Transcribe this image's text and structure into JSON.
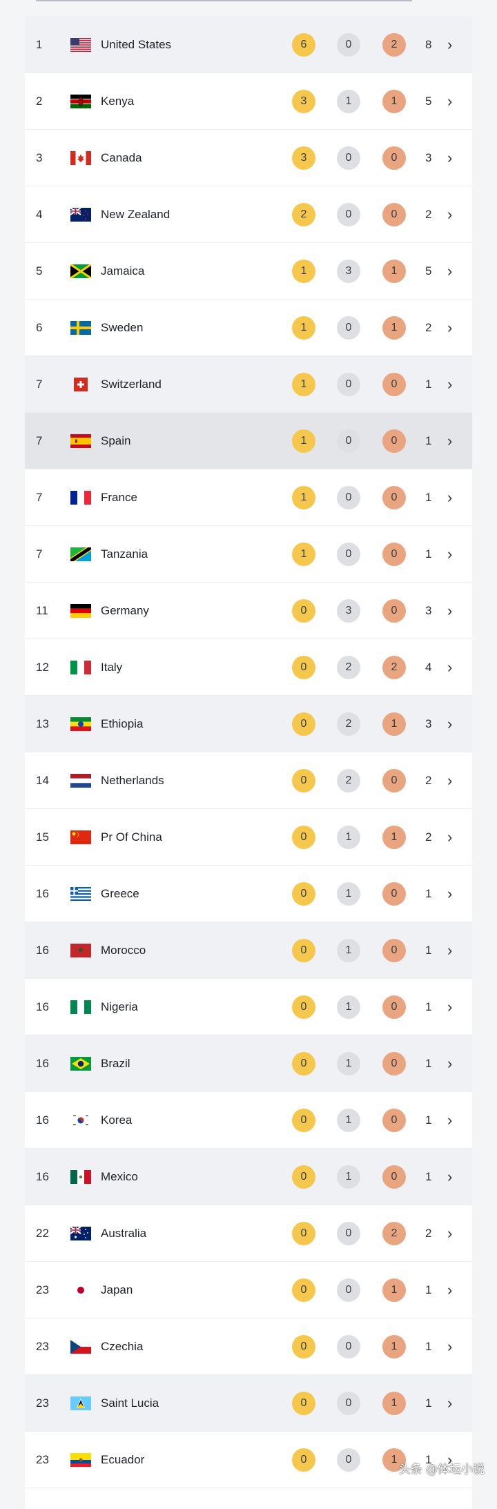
{
  "medal_table": {
    "rows": [
      {
        "rank": "1",
        "country": "United States",
        "gold": "6",
        "silver": "0",
        "bronze": "2",
        "total": "8",
        "flag": "us-flag-icon"
      },
      {
        "rank": "2",
        "country": "Kenya",
        "gold": "3",
        "silver": "1",
        "bronze": "1",
        "total": "5",
        "flag": "kenya-flag-icon"
      },
      {
        "rank": "3",
        "country": "Canada",
        "gold": "3",
        "silver": "0",
        "bronze": "0",
        "total": "3",
        "flag": "canada-flag-icon"
      },
      {
        "rank": "4",
        "country": "New Zealand",
        "gold": "2",
        "silver": "0",
        "bronze": "0",
        "total": "2",
        "flag": "new-zealand-flag-icon"
      },
      {
        "rank": "5",
        "country": "Jamaica",
        "gold": "1",
        "silver": "3",
        "bronze": "1",
        "total": "5",
        "flag": "jamaica-flag-icon"
      },
      {
        "rank": "6",
        "country": "Sweden",
        "gold": "1",
        "silver": "0",
        "bronze": "1",
        "total": "2",
        "flag": "sweden-flag-icon"
      },
      {
        "rank": "7",
        "country": "Switzerland",
        "gold": "1",
        "silver": "0",
        "bronze": "0",
        "total": "1",
        "flag": "switzerland-flag-icon"
      },
      {
        "rank": "7",
        "country": "Spain",
        "gold": "1",
        "silver": "0",
        "bronze": "0",
        "total": "1",
        "flag": "spain-flag-icon"
      },
      {
        "rank": "7",
        "country": "France",
        "gold": "1",
        "silver": "0",
        "bronze": "0",
        "total": "1",
        "flag": "france-flag-icon"
      },
      {
        "rank": "7",
        "country": "Tanzania",
        "gold": "1",
        "silver": "0",
        "bronze": "0",
        "total": "1",
        "flag": "tanzania-flag-icon"
      },
      {
        "rank": "11",
        "country": "Germany",
        "gold": "0",
        "silver": "3",
        "bronze": "0",
        "total": "3",
        "flag": "germany-flag-icon"
      },
      {
        "rank": "12",
        "country": "Italy",
        "gold": "0",
        "silver": "2",
        "bronze": "2",
        "total": "4",
        "flag": "italy-flag-icon"
      },
      {
        "rank": "13",
        "country": "Ethiopia",
        "gold": "0",
        "silver": "2",
        "bronze": "1",
        "total": "3",
        "flag": "ethiopia-flag-icon"
      },
      {
        "rank": "14",
        "country": "Netherlands",
        "gold": "0",
        "silver": "2",
        "bronze": "0",
        "total": "2",
        "flag": "netherlands-flag-icon"
      },
      {
        "rank": "15",
        "country": "Pr Of China",
        "gold": "0",
        "silver": "1",
        "bronze": "1",
        "total": "2",
        "flag": "china-flag-icon"
      },
      {
        "rank": "16",
        "country": "Greece",
        "gold": "0",
        "silver": "1",
        "bronze": "0",
        "total": "1",
        "flag": "greece-flag-icon"
      },
      {
        "rank": "16",
        "country": "Morocco",
        "gold": "0",
        "silver": "1",
        "bronze": "0",
        "total": "1",
        "flag": "morocco-flag-icon"
      },
      {
        "rank": "16",
        "country": "Nigeria",
        "gold": "0",
        "silver": "1",
        "bronze": "0",
        "total": "1",
        "flag": "nigeria-flag-icon"
      },
      {
        "rank": "16",
        "country": "Brazil",
        "gold": "0",
        "silver": "1",
        "bronze": "0",
        "total": "1",
        "flag": "brazil-flag-icon"
      },
      {
        "rank": "16",
        "country": "Korea",
        "gold": "0",
        "silver": "1",
        "bronze": "0",
        "total": "1",
        "flag": "korea-flag-icon"
      },
      {
        "rank": "16",
        "country": "Mexico",
        "gold": "0",
        "silver": "1",
        "bronze": "0",
        "total": "1",
        "flag": "mexico-flag-icon"
      },
      {
        "rank": "22",
        "country": "Australia",
        "gold": "0",
        "silver": "0",
        "bronze": "2",
        "total": "2",
        "flag": "australia-flag-icon"
      },
      {
        "rank": "23",
        "country": "Japan",
        "gold": "0",
        "silver": "0",
        "bronze": "1",
        "total": "1",
        "flag": "japan-flag-icon"
      },
      {
        "rank": "23",
        "country": "Czechia",
        "gold": "0",
        "silver": "0",
        "bronze": "1",
        "total": "1",
        "flag": "czechia-flag-icon"
      },
      {
        "rank": "23",
        "country": "Saint Lucia",
        "gold": "0",
        "silver": "0",
        "bronze": "1",
        "total": "1",
        "flag": "saint-lucia-flag-icon"
      },
      {
        "rank": "23",
        "country": "Ecuador",
        "gold": "0",
        "silver": "0",
        "bronze": "1",
        "total": "1",
        "flag": "ecuador-flag-icon"
      }
    ]
  },
  "colors": {
    "gold": "#f5c74d",
    "silver": "#dedfe2",
    "bronze": "#e9a57f"
  },
  "chevron_glyph": "›",
  "watermark": "头条 @体坛小说"
}
